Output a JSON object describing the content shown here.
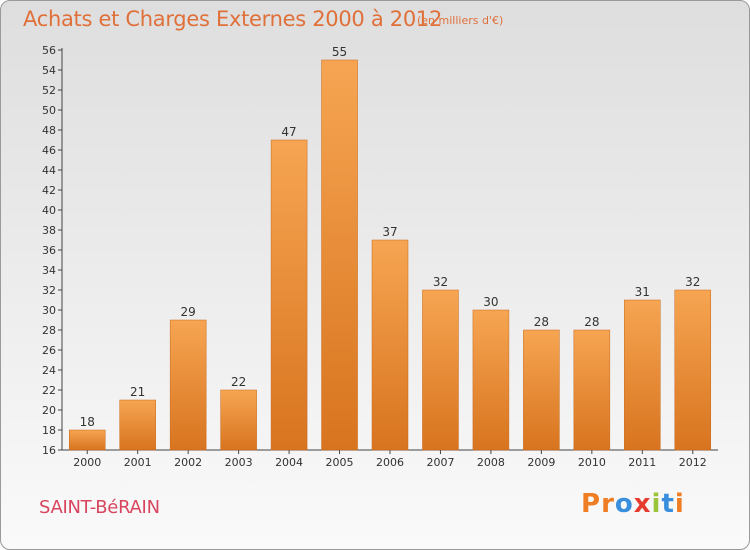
{
  "title": "Achats et Charges Externes 2000 à 2012",
  "subtitle": "(en milliers d'€)",
  "commune": "SAINT-BéRAIN",
  "logo": {
    "p1": "P",
    "p2": "r",
    "p3": "o",
    "p4": "x",
    "p5": "i",
    "p6": "t",
    "p7": "i"
  },
  "colors": {
    "bar_light": "#f6a552",
    "bar_dark": "#d8741f",
    "text": "#333333",
    "title": "#e0703a",
    "commune": "#d9455f"
  },
  "chart_data": {
    "type": "bar",
    "categories": [
      "2000",
      "2001",
      "2002",
      "2003",
      "2004",
      "2005",
      "2006",
      "2007",
      "2008",
      "2009",
      "2010",
      "2011",
      "2012"
    ],
    "values": [
      18,
      21,
      29,
      22,
      47,
      55,
      37,
      32,
      30,
      28,
      28,
      31,
      32
    ],
    "ylim": [
      16,
      56
    ],
    "yticks": [
      16,
      18,
      20,
      22,
      24,
      26,
      28,
      30,
      32,
      34,
      36,
      38,
      40,
      42,
      44,
      46,
      48,
      50,
      52,
      54,
      56
    ],
    "grid": false,
    "xlabel": "",
    "ylabel": ""
  }
}
